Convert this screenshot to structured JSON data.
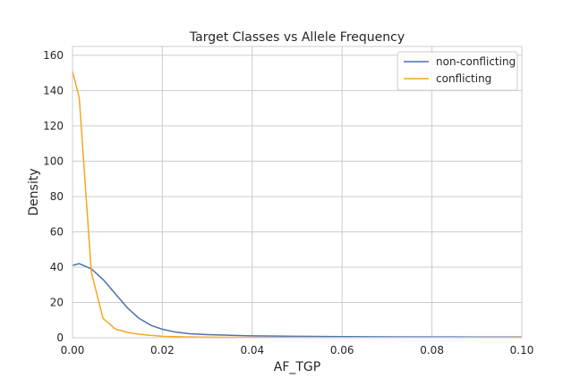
{
  "chart_data": {
    "type": "line",
    "title": "Target Classes vs Allele Frequency",
    "xlabel": "AF_TGP",
    "ylabel": "Density",
    "xlim": [
      0,
      0.1
    ],
    "ylim": [
      0,
      165
    ],
    "xticks": [
      0.0,
      0.02,
      0.04,
      0.06,
      0.08,
      0.1
    ],
    "xtick_labels": [
      "0.00",
      "0.02",
      "0.04",
      "0.06",
      "0.08",
      "0.10"
    ],
    "yticks": [
      0,
      20,
      40,
      60,
      80,
      100,
      120,
      140,
      160
    ],
    "ytick_labels": [
      "0",
      "20",
      "40",
      "60",
      "80",
      "100",
      "120",
      "140",
      "160"
    ],
    "grid": true,
    "legend_position": "top-right",
    "series": [
      {
        "name": "non-conflicting",
        "color": "#4c72b0",
        "x": [
          0.0,
          0.0015,
          0.0042,
          0.0068,
          0.0095,
          0.0122,
          0.0148,
          0.0175,
          0.02,
          0.023,
          0.026,
          0.03,
          0.035,
          0.04,
          0.05,
          0.06,
          0.07,
          0.08,
          0.09,
          0.1
        ],
        "y": [
          41,
          42,
          39,
          33,
          25,
          17,
          11,
          7,
          4.8,
          3.2,
          2.3,
          1.8,
          1.4,
          1.1,
          0.8,
          0.6,
          0.5,
          0.45,
          0.4,
          0.35
        ]
      },
      {
        "name": "conflicting",
        "color": "#f5a623",
        "x": [
          0.0,
          0.0015,
          0.0042,
          0.0068,
          0.0095,
          0.0122,
          0.0148,
          0.0175,
          0.02,
          0.025,
          0.03,
          0.04,
          0.05,
          0.06,
          0.08,
          0.1
        ],
        "y": [
          151,
          136,
          37,
          11,
          5,
          3,
          2,
          1.3,
          0.8,
          0.5,
          0.3,
          0.2,
          0.2,
          0.1,
          0.1,
          0.1
        ]
      }
    ]
  }
}
